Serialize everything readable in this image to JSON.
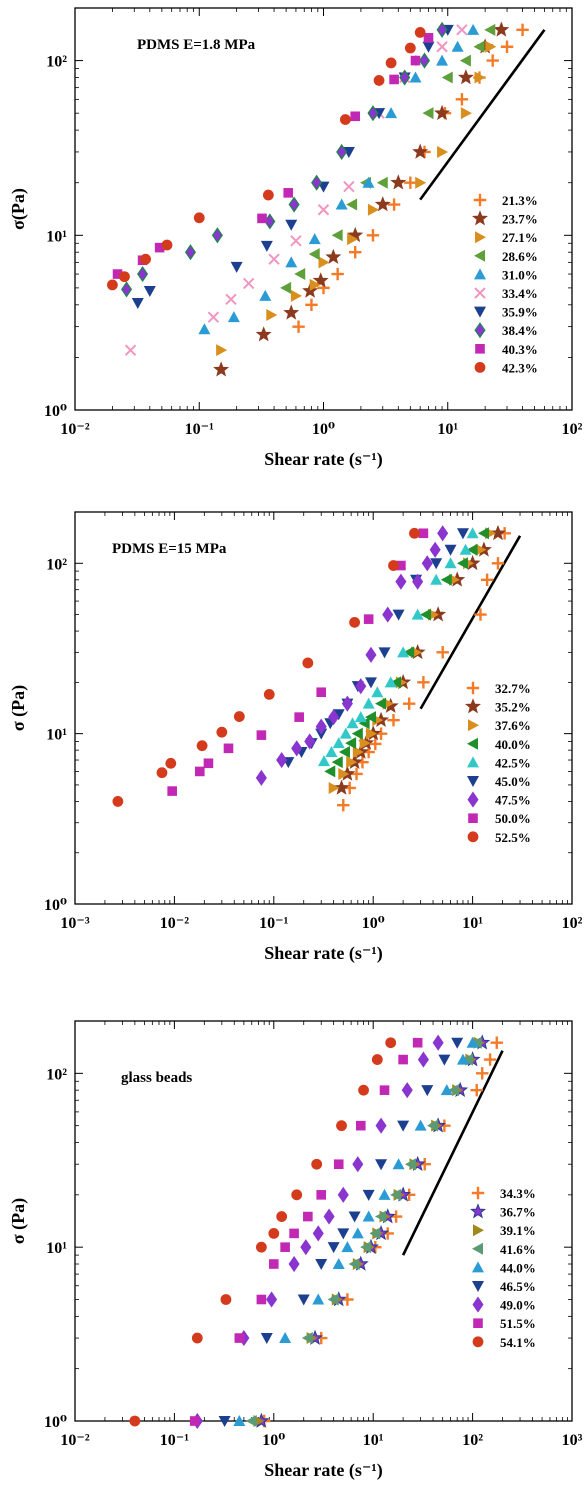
{
  "chart_data": [
    {
      "type": "scatter",
      "title": "PDMS E=1.8 MPa",
      "xlabel": "Shear rate (s⁻¹)",
      "ylabel": "σ(Pa)",
      "xscale": "log",
      "yscale": "log",
      "xlim": [
        0.01,
        100
      ],
      "ylim": [
        1,
        200
      ],
      "x_ticks": [
        "10⁻²",
        "10⁻¹",
        "10⁰",
        "10¹",
        "10²"
      ],
      "y_ticks": [
        "10⁰",
        "10¹",
        "10²"
      ],
      "legend_position": "lower right",
      "guide_line": {
        "x": [
          6,
          60
        ],
        "y": [
          16,
          150
        ]
      },
      "series": [
        {
          "name": "21.3%",
          "marker": "plus",
          "color": "#f47a28",
          "x": [
            0.63,
            0.8,
            1.0,
            1.3,
            1.8,
            2.5,
            3.7,
            5.0,
            6.5,
            9.5,
            13,
            18,
            23,
            30,
            40
          ],
          "y": [
            3.0,
            4.0,
            5.0,
            6.0,
            8.0,
            10.0,
            15,
            20,
            30,
            50,
            60,
            80,
            100,
            120,
            150
          ]
        },
        {
          "name": "23.7%",
          "marker": "star",
          "color": "#8b3a1e",
          "x": [
            0.15,
            0.33,
            0.55,
            0.78,
            0.95,
            1.2,
            1.8,
            3.0,
            4.0,
            6.0,
            9.0,
            14,
            20,
            27
          ],
          "y": [
            1.7,
            2.7,
            3.6,
            4.8,
            5.5,
            7.5,
            10,
            15,
            20,
            30,
            50,
            80,
            120,
            150
          ]
        },
        {
          "name": "27.1%",
          "marker": "tri-right",
          "color": "#d98f1d",
          "x": [
            0.15,
            0.38,
            0.6,
            0.85,
            1.0,
            1.7,
            2.5,
            6.0,
            9.0,
            14,
            18,
            22
          ],
          "y": [
            2.2,
            3.5,
            4.5,
            5.2,
            7.0,
            9.5,
            14,
            20,
            30,
            50,
            80,
            120
          ]
        },
        {
          "name": "28.6%",
          "marker": "tri-left",
          "color": "#5fa03b",
          "x": [
            0.5,
            0.65,
            0.85,
            1.3,
            1.7,
            2.2,
            3.0,
            7.0,
            10,
            14,
            18,
            22
          ],
          "y": [
            5.0,
            6.0,
            7.8,
            10,
            15,
            20,
            20,
            50,
            80,
            100,
            120,
            150
          ]
        },
        {
          "name": "31.0%",
          "marker": "tri-up",
          "color": "#2a9bd4",
          "x": [
            0.11,
            0.19,
            0.34,
            0.55,
            0.85,
            1.4,
            2.3,
            3.5,
            5.5,
            9.0,
            12,
            16
          ],
          "y": [
            2.9,
            3.4,
            4.5,
            7.0,
            9.5,
            15,
            20,
            50,
            80,
            100,
            120,
            150
          ]
        },
        {
          "name": "33.4%",
          "marker": "x",
          "color": "#f195c1",
          "x": [
            0.028,
            0.13,
            0.18,
            0.25,
            0.4,
            0.6,
            1.0,
            1.6,
            2.8,
            4.5,
            6.0,
            9.0,
            13
          ],
          "y": [
            2.2,
            3.4,
            4.3,
            5.3,
            7.3,
            9.3,
            14,
            19,
            50,
            80,
            100,
            120,
            150
          ]
        },
        {
          "name": "35.9%",
          "marker": "tri-down",
          "color": "#1d3f8f",
          "x": [
            0.032,
            0.04,
            0.2,
            0.35,
            0.55,
            1.0,
            1.6,
            2.8,
            4.5,
            7.0,
            10
          ],
          "y": [
            4.1,
            4.8,
            6.6,
            8.7,
            11.5,
            19,
            30,
            50,
            80,
            120,
            150
          ]
        },
        {
          "name": "38.4%",
          "marker": "diamond",
          "color": "#1a8a45",
          "fill": "#8a35d0",
          "x": [
            0.026,
            0.035,
            0.085,
            0.14,
            0.37,
            0.58,
            0.88,
            1.4,
            2.5,
            4.5,
            6.5,
            9.0
          ],
          "y": [
            4.9,
            6.0,
            8.0,
            10,
            12,
            15,
            20,
            30,
            50,
            80,
            100,
            150
          ]
        },
        {
          "name": "40.3%",
          "marker": "square",
          "color": "#c129b5",
          "x": [
            0.022,
            0.035,
            0.048,
            0.32,
            0.52,
            1.8,
            3.7,
            5.5,
            7.0
          ],
          "y": [
            6.0,
            7.2,
            8.5,
            12.5,
            17.5,
            48,
            78,
            100,
            135
          ]
        },
        {
          "name": "42.3%",
          "marker": "circle",
          "color": "#d43b1c",
          "x": [
            0.02,
            0.025,
            0.037,
            0.055,
            0.1,
            0.36,
            1.5,
            2.8,
            3.5,
            5.0,
            6.0
          ],
          "y": [
            5.2,
            5.8,
            7.3,
            8.8,
            12.6,
            17,
            46,
            77,
            97,
            118,
            145
          ]
        }
      ]
    },
    {
      "type": "scatter",
      "title": "PDMS E=15 MPa",
      "xlabel": "Shear rate (s⁻¹)",
      "ylabel": "σ (Pa)",
      "xscale": "log",
      "yscale": "log",
      "xlim": [
        0.001,
        100
      ],
      "ylim": [
        1,
        200
      ],
      "x_ticks": [
        "10⁻³",
        "10⁻²",
        "10⁻¹",
        "10⁰",
        "10¹",
        "10²"
      ],
      "y_ticks": [
        "10⁰",
        "10¹",
        "10²"
      ],
      "legend_position": "lower right",
      "guide_line": {
        "x": [
          3,
          30
        ],
        "y": [
          14,
          145
        ]
      },
      "series": [
        {
          "name": "32.7%",
          "marker": "plus",
          "color": "#f47a28",
          "x": [
            0.5,
            0.58,
            0.68,
            0.78,
            0.9,
            1.05,
            1.2,
            1.6,
            2.3,
            3.2,
            5.0,
            12,
            14,
            18,
            21
          ],
          "y": [
            3.8,
            4.8,
            5.8,
            6.8,
            7.8,
            8.7,
            10,
            12,
            15,
            20,
            30,
            50,
            80,
            100,
            150
          ]
        },
        {
          "name": "35.2%",
          "marker": "star",
          "color": "#8b3a1e",
          "x": [
            0.48,
            0.55,
            0.65,
            0.75,
            0.85,
            1.0,
            1.2,
            1.5,
            2.0,
            2.8,
            4.5,
            7.0,
            10,
            13,
            18
          ],
          "y": [
            4.8,
            5.8,
            6.8,
            7.8,
            8.8,
            10,
            12,
            14.5,
            20,
            30,
            50,
            80,
            100,
            120,
            150
          ]
        },
        {
          "name": "37.6%",
          "marker": "tri-right",
          "color": "#d98f1d",
          "x": [
            0.4,
            0.5,
            0.6,
            0.7,
            0.82,
            0.95,
            1.1,
            1.4,
            1.9,
            2.7,
            4.0,
            6.5,
            9.0,
            12,
            15
          ],
          "y": [
            4.8,
            5.8,
            6.8,
            7.8,
            8.8,
            10,
            12,
            15,
            20,
            30,
            50,
            80,
            100,
            120,
            150
          ]
        },
        {
          "name": "40.0%",
          "marker": "tri-left",
          "color": "#1e8f2a",
          "x": [
            0.37,
            0.44,
            0.52,
            0.6,
            0.7,
            0.82,
            0.95,
            1.2,
            1.7,
            2.3,
            3.4,
            5.5,
            8.0,
            10,
            13
          ],
          "y": [
            6.0,
            6.8,
            7.8,
            8.8,
            10,
            11.5,
            12.5,
            15,
            20,
            30,
            50,
            80,
            100,
            120,
            150
          ]
        },
        {
          "name": "42.5%",
          "marker": "tri-up",
          "color": "#33c8c8",
          "x": [
            0.32,
            0.38,
            0.45,
            0.53,
            0.62,
            0.75,
            0.9,
            1.1,
            1.5,
            2.0,
            2.8,
            4.3,
            6.0,
            8.5,
            10
          ],
          "y": [
            6.9,
            7.8,
            8.8,
            10,
            11.5,
            12.5,
            15,
            17.5,
            20,
            30,
            50,
            80,
            100,
            120,
            150
          ]
        },
        {
          "name": "45.0%",
          "marker": "tri-down",
          "color": "#1d3f8f",
          "x": [
            0.14,
            0.19,
            0.24,
            0.3,
            0.37,
            0.45,
            0.55,
            0.7,
            0.95,
            1.3,
            1.8,
            2.7,
            4.3,
            6.0,
            8.0
          ],
          "y": [
            6.8,
            7.8,
            8.8,
            10,
            11.5,
            13,
            15,
            19,
            20,
            30,
            50,
            80,
            100,
            120,
            150
          ]
        },
        {
          "name": "47.5%",
          "marker": "diamond",
          "color": "#8a35d0",
          "x": [
            0.075,
            0.12,
            0.17,
            0.23,
            0.3,
            0.4,
            0.55,
            0.75,
            0.95,
            1.4,
            1.9,
            2.8,
            3.5,
            4.2,
            5.0
          ],
          "y": [
            5.5,
            7.0,
            8.2,
            9.0,
            11,
            12.5,
            15,
            19,
            29,
            50,
            78,
            78,
            100,
            120,
            150
          ]
        },
        {
          "name": "50.0%",
          "marker": "square",
          "color": "#c129b5",
          "x": [
            0.0095,
            0.018,
            0.022,
            0.035,
            0.075,
            0.18,
            0.3,
            0.9,
            1.9,
            3.2
          ],
          "y": [
            4.6,
            6.0,
            6.7,
            8.2,
            9.8,
            12.5,
            17.5,
            47,
            97,
            150
          ]
        },
        {
          "name": "52.5%",
          "marker": "circle",
          "color": "#d43b1c",
          "x": [
            0.0027,
            0.0075,
            0.0092,
            0.019,
            0.03,
            0.045,
            0.09,
            0.22,
            0.65,
            1.6,
            2.6
          ],
          "y": [
            4.0,
            5.9,
            6.7,
            8.5,
            10.2,
            12.6,
            17,
            26,
            45,
            97,
            150
          ]
        }
      ]
    },
    {
      "type": "scatter",
      "title": "glass beads",
      "xlabel": "Shear rate (s⁻¹)",
      "ylabel": "σ (Pa)",
      "xscale": "log",
      "yscale": "log",
      "xlim": [
        0.01,
        1000
      ],
      "ylim": [
        1,
        200
      ],
      "x_ticks": [
        "10⁻²",
        "10⁻¹",
        "10⁰",
        "10¹",
        "10²",
        "10³"
      ],
      "y_ticks": [
        "10⁰",
        "10¹",
        "10²"
      ],
      "legend_position": "lower right",
      "guide_line": {
        "x": [
          20,
          200
        ],
        "y": [
          9,
          135
        ]
      },
      "series": [
        {
          "name": "34.3%",
          "marker": "plus",
          "color": "#f47a28",
          "x": [
            0.8,
            3.0,
            5.5,
            10.5,
            14,
            17,
            23,
            33,
            52,
            110,
            125,
            150,
            175
          ],
          "y": [
            1.0,
            3.0,
            5.0,
            10,
            12,
            15,
            20,
            30,
            50,
            80,
            100,
            120,
            150
          ]
        },
        {
          "name": "36.7%",
          "marker": "star",
          "color": "#2b3a8f",
          "fill": "#8a35d0",
          "x": [
            0.75,
            2.6,
            4.5,
            7.5,
            9.5,
            12,
            14,
            20,
            28,
            45,
            75,
            100,
            125
          ],
          "y": [
            1.0,
            3.0,
            5.0,
            8.0,
            10,
            12,
            15,
            20,
            30,
            50,
            80,
            120,
            150
          ]
        },
        {
          "name": "39.1%",
          "marker": "tri-right",
          "color": "#a08a1a",
          "x": [
            0.7,
            2.4,
            4.3,
            7.0,
            9.0,
            11,
            13,
            18,
            26,
            43,
            70,
            95,
            115
          ],
          "y": [
            1.0,
            3.0,
            5.0,
            8.0,
            10,
            12,
            15,
            20,
            30,
            50,
            80,
            120,
            150
          ]
        },
        {
          "name": "41.6%",
          "marker": "tri-left",
          "color": "#5a9a74",
          "x": [
            0.6,
            2.2,
            4.0,
            6.5,
            8.5,
            10.5,
            12,
            17,
            24,
            40,
            65,
            90,
            110
          ],
          "y": [
            1.0,
            3.0,
            5.0,
            8.0,
            10,
            12,
            15,
            20,
            30,
            50,
            80,
            120,
            150
          ]
        },
        {
          "name": "44.0%",
          "marker": "tri-up",
          "color": "#2a9bd4",
          "x": [
            0.45,
            1.3,
            2.8,
            4.5,
            5.5,
            7.0,
            9.0,
            13,
            18,
            30,
            55,
            80,
            100
          ],
          "y": [
            1.0,
            3.0,
            5.0,
            8.0,
            10,
            12,
            15,
            20,
            30,
            50,
            80,
            120,
            150
          ]
        },
        {
          "name": "46.5%",
          "marker": "tri-down",
          "color": "#1d3f8f",
          "x": [
            0.32,
            0.85,
            2.0,
            3.0,
            4.0,
            5.0,
            6.5,
            9.0,
            12,
            20,
            35,
            52,
            70
          ],
          "y": [
            1.0,
            3.0,
            5.0,
            8.0,
            10,
            12,
            15,
            20,
            30,
            50,
            80,
            120,
            150
          ]
        },
        {
          "name": "49.0%",
          "marker": "diamond",
          "color": "#8a35d0",
          "x": [
            0.17,
            0.5,
            0.95,
            1.6,
            2.1,
            2.8,
            3.6,
            5.0,
            7.0,
            12,
            22,
            32,
            45
          ],
          "y": [
            1.0,
            3.0,
            5.0,
            8.0,
            10,
            12,
            15,
            20,
            30,
            50,
            80,
            120,
            150
          ]
        },
        {
          "name": "51.5%",
          "marker": "square",
          "color": "#c129b5",
          "x": [
            0.16,
            0.45,
            0.75,
            1.0,
            1.3,
            1.6,
            2.2,
            3.0,
            4.5,
            7.5,
            13,
            20,
            28
          ],
          "y": [
            1.0,
            3.0,
            5.0,
            8.0,
            10,
            12,
            15,
            20,
            30,
            50,
            80,
            120,
            150
          ]
        },
        {
          "name": "54.1%",
          "marker": "circle",
          "color": "#d43b1c",
          "x": [
            0.04,
            0.17,
            0.33,
            0.75,
            1.0,
            1.2,
            1.7,
            2.7,
            4.8,
            8.0,
            11,
            15
          ],
          "y": [
            1.0,
            3.0,
            5.0,
            10,
            12,
            15,
            20,
            30,
            50,
            80,
            120,
            150
          ]
        }
      ]
    }
  ]
}
